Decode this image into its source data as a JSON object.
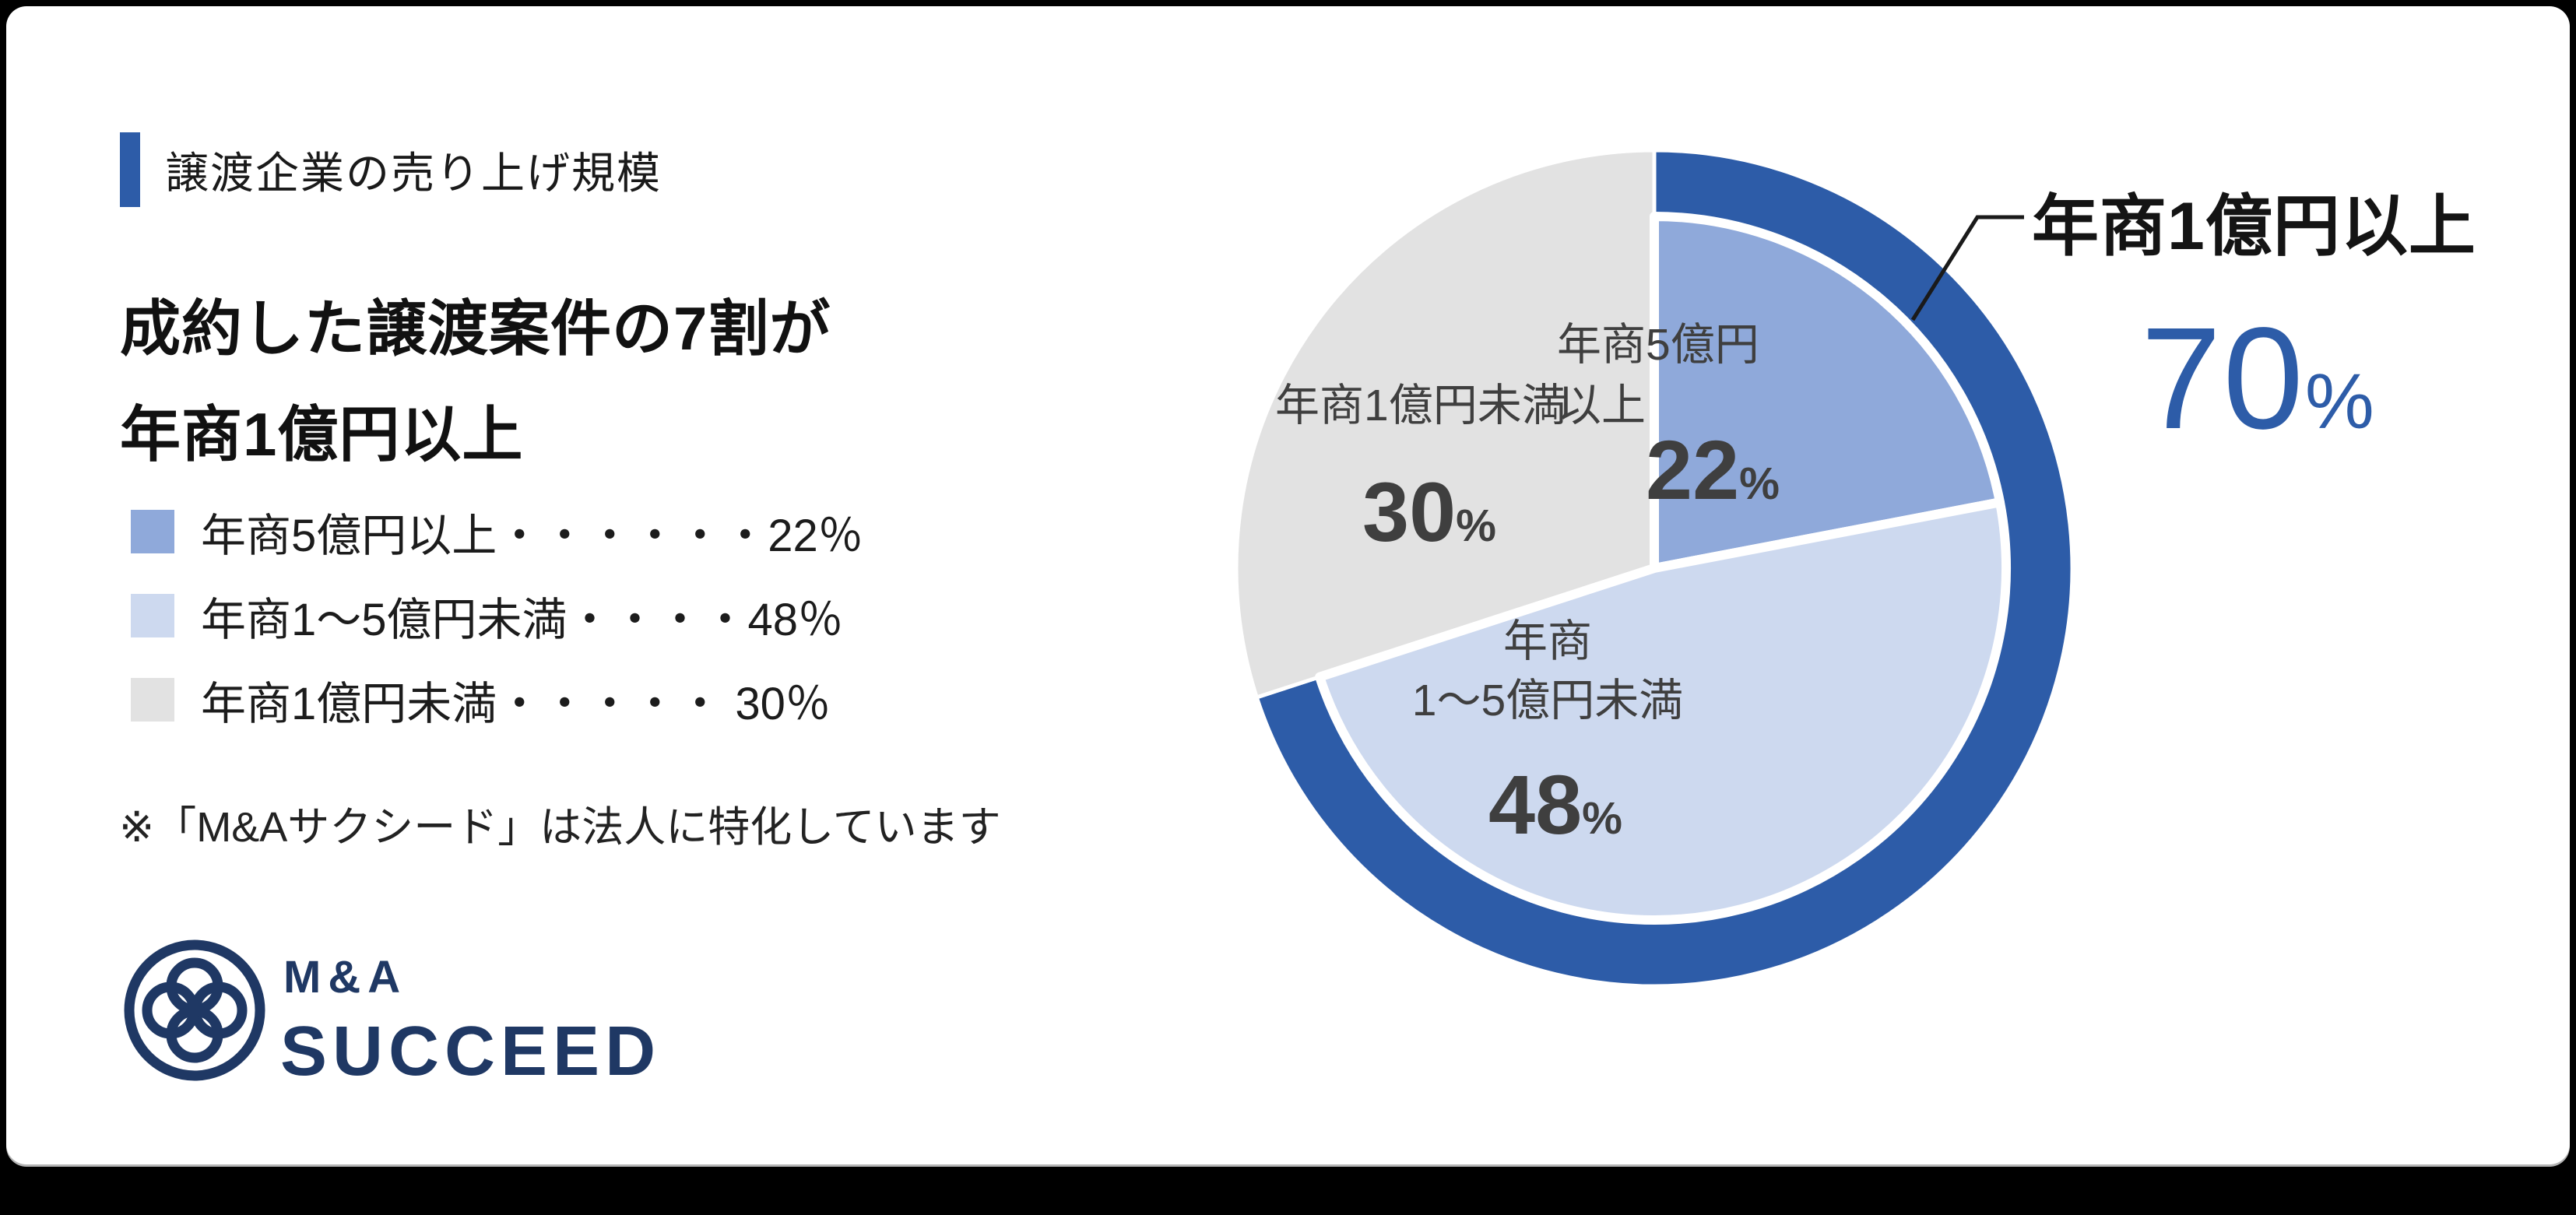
{
  "page": {
    "background": "#000000",
    "card_background": "#ffffff"
  },
  "colors": {
    "accent_blue": "#2D5CA8",
    "slice_medium_blue": "#8FA9DA",
    "slice_light_blue": "#CDD9EF",
    "slice_gray": "#E2E2E2",
    "label_gray": "#3F3F3F",
    "logo_navy": "#1F3864",
    "text_black": "#1a1a1a"
  },
  "header": {
    "title": "譲渡企業の売り上げ規模"
  },
  "headline": {
    "line1": "成約した譲渡案件の7割が",
    "line2": "年商1億円以上"
  },
  "legend": {
    "items": [
      {
        "label": "年商5億円以上",
        "dots": "・・・・・・",
        "value": "22％",
        "color": "#8FA9DA"
      },
      {
        "label": "年商1～5億円未満",
        "dots": "・・・・",
        "value": "48％",
        "color": "#CDD9EF"
      },
      {
        "label": "年商1億円未満",
        "dots": "・・・・・ ",
        "value": "30％",
        "color": "#E2E2E2"
      }
    ]
  },
  "note": "※「M&Aサクシード」は法人に特化しています",
  "logo": {
    "line1": "M&A",
    "line2": "SUCCEED"
  },
  "chart_data": {
    "type": "pie",
    "title": "譲渡企業の売り上げ規模",
    "categories": [
      "年商5億円以上",
      "年商1～5億円未満",
      "年商1億円未満"
    ],
    "values": [
      22,
      48,
      30
    ],
    "unit": "%",
    "colors": [
      "#8FA9DA",
      "#CDD9EF",
      "#E2E2E2"
    ],
    "start_angle_deg": 0,
    "direction": "clockwise",
    "legend_position": "left",
    "highlight": {
      "label": "年商1億円以上",
      "value": 70,
      "unit": "%",
      "color": "#2D5CA8",
      "covers": [
        "年商5億円以上",
        "年商1～5億円未満"
      ],
      "style": "outer-ring"
    }
  },
  "slice_annotations": {
    "s22": {
      "line1": "年商5億円",
      "line2": "以上",
      "num": "22",
      "pct": "%"
    },
    "s48": {
      "line1": "年商",
      "line2": "1～5億円未満",
      "num": "48",
      "pct": "%"
    },
    "s30": {
      "line1": "年商1億円未満",
      "num": "30",
      "pct": "%"
    },
    "callout": {
      "label": "年商1億円以上",
      "num": "70",
      "pct": "%"
    }
  }
}
